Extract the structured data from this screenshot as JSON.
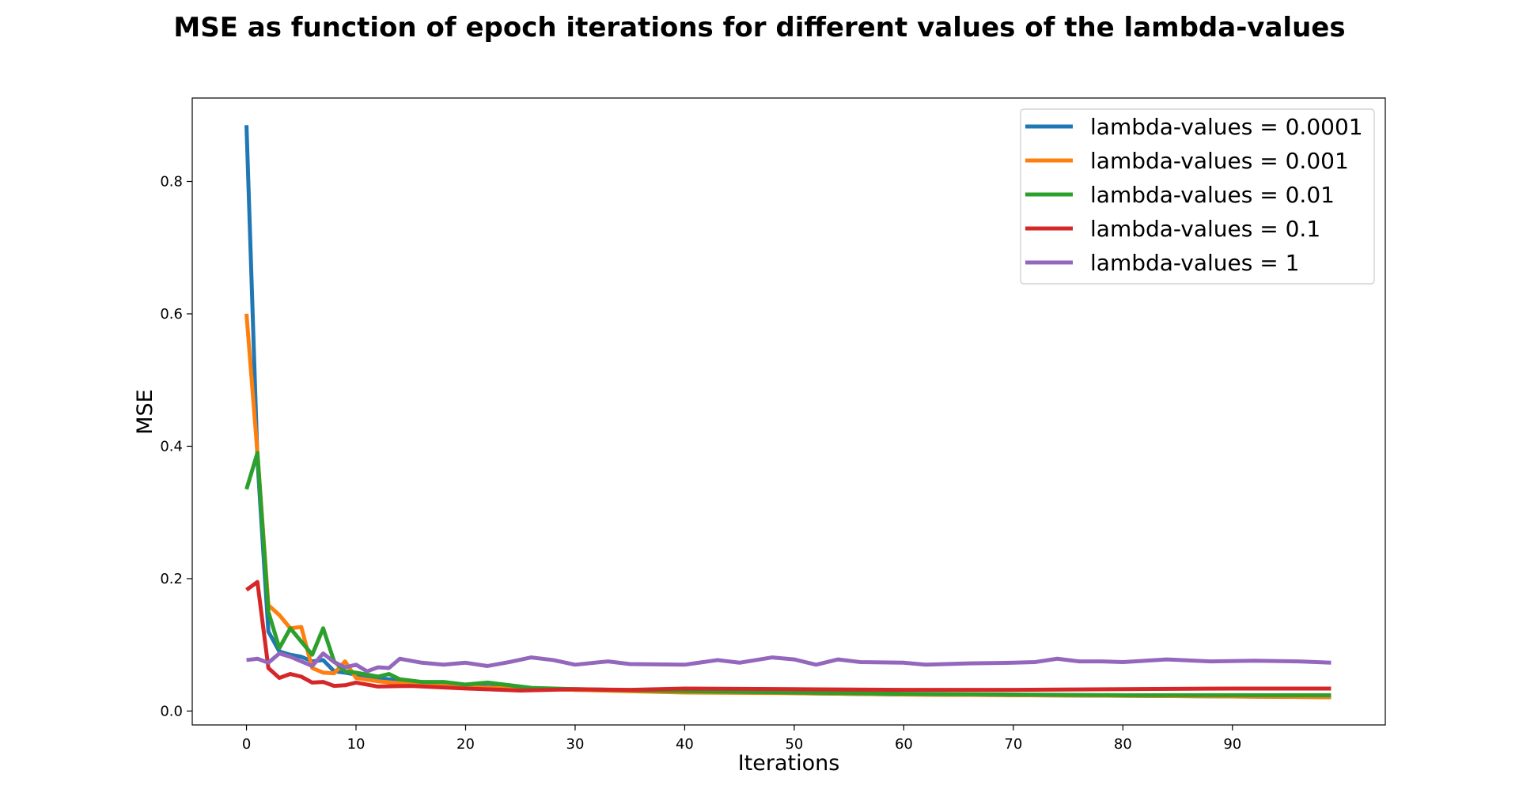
{
  "chart_data": {
    "type": "line",
    "title": "MSE as function of epoch iterations for different values of the lambda-values",
    "xlabel": "Iterations",
    "ylabel": "MSE",
    "xlim": [
      -4.95,
      103.95
    ],
    "ylim": [
      -0.021,
      0.926
    ],
    "xticks": [
      0,
      10,
      20,
      30,
      40,
      50,
      60,
      70,
      80,
      90
    ],
    "yticks": [
      0.0,
      0.2,
      0.4,
      0.6,
      0.8
    ],
    "grid": false,
    "legend_position": "top-right",
    "series": [
      {
        "name": "lambda-values = 0.0001",
        "color": "#1f77b4",
        "keypoints": [
          [
            0,
            0.885
          ],
          [
            1,
            0.38
          ],
          [
            2,
            0.12
          ],
          [
            3,
            0.09
          ],
          [
            4,
            0.085
          ],
          [
            5,
            0.082
          ],
          [
            6,
            0.075
          ],
          [
            7,
            0.077
          ],
          [
            8,
            0.06
          ],
          [
            9,
            0.058
          ],
          [
            10,
            0.055
          ],
          [
            12,
            0.05
          ],
          [
            14,
            0.046
          ],
          [
            20,
            0.038
          ],
          [
            30,
            0.032
          ],
          [
            40,
            0.029
          ],
          [
            50,
            0.027
          ],
          [
            60,
            0.025
          ],
          [
            70,
            0.024
          ],
          [
            80,
            0.023
          ],
          [
            90,
            0.022
          ],
          [
            99,
            0.021
          ]
        ]
      },
      {
        "name": "lambda-values = 0.001",
        "color": "#ff7f0e",
        "keypoints": [
          [
            0,
            0.6
          ],
          [
            1,
            0.39
          ],
          [
            2,
            0.16
          ],
          [
            3,
            0.145
          ],
          [
            4,
            0.125
          ],
          [
            5,
            0.127
          ],
          [
            6,
            0.065
          ],
          [
            7,
            0.058
          ],
          [
            8,
            0.057
          ],
          [
            9,
            0.075
          ],
          [
            10,
            0.05
          ],
          [
            12,
            0.045
          ],
          [
            14,
            0.042
          ],
          [
            20,
            0.036
          ],
          [
            30,
            0.032
          ],
          [
            40,
            0.028
          ],
          [
            50,
            0.027
          ],
          [
            60,
            0.025
          ],
          [
            70,
            0.024
          ],
          [
            80,
            0.023
          ],
          [
            90,
            0.022
          ],
          [
            99,
            0.021
          ]
        ]
      },
      {
        "name": "lambda-values = 0.01",
        "color": "#2ca02c",
        "keypoints": [
          [
            0,
            0.335
          ],
          [
            1,
            0.39
          ],
          [
            2,
            0.15
          ],
          [
            3,
            0.095
          ],
          [
            4,
            0.125
          ],
          [
            5,
            0.105
          ],
          [
            6,
            0.085
          ],
          [
            7,
            0.125
          ],
          [
            8,
            0.075
          ],
          [
            9,
            0.06
          ],
          [
            10,
            0.058
          ],
          [
            12,
            0.052
          ],
          [
            13,
            0.056
          ],
          [
            14,
            0.048
          ],
          [
            16,
            0.044
          ],
          [
            18,
            0.044
          ],
          [
            20,
            0.04
          ],
          [
            22,
            0.043
          ],
          [
            26,
            0.035
          ],
          [
            30,
            0.033
          ],
          [
            40,
            0.03
          ],
          [
            50,
            0.028
          ],
          [
            60,
            0.026
          ],
          [
            70,
            0.025
          ],
          [
            80,
            0.024
          ],
          [
            90,
            0.024
          ],
          [
            99,
            0.024
          ]
        ]
      },
      {
        "name": "lambda-values = 0.1",
        "color": "#d62728",
        "keypoints": [
          [
            0,
            0.183
          ],
          [
            1,
            0.195
          ],
          [
            2,
            0.065
          ],
          [
            3,
            0.05
          ],
          [
            4,
            0.056
          ],
          [
            5,
            0.052
          ],
          [
            6,
            0.043
          ],
          [
            7,
            0.044
          ],
          [
            8,
            0.038
          ],
          [
            9,
            0.039
          ],
          [
            10,
            0.043
          ],
          [
            12,
            0.037
          ],
          [
            15,
            0.038
          ],
          [
            20,
            0.034
          ],
          [
            25,
            0.031
          ],
          [
            30,
            0.033
          ],
          [
            35,
            0.032
          ],
          [
            40,
            0.034
          ],
          [
            50,
            0.033
          ],
          [
            60,
            0.032
          ],
          [
            70,
            0.032
          ],
          [
            80,
            0.033
          ],
          [
            90,
            0.034
          ],
          [
            99,
            0.034
          ]
        ]
      },
      {
        "name": "lambda-values = 1",
        "color": "#9467bd",
        "keypoints": [
          [
            0,
            0.077
          ],
          [
            1,
            0.079
          ],
          [
            2,
            0.073
          ],
          [
            3,
            0.087
          ],
          [
            4,
            0.082
          ],
          [
            5,
            0.075
          ],
          [
            6,
            0.068
          ],
          [
            7,
            0.087
          ],
          [
            8,
            0.074
          ],
          [
            9,
            0.066
          ],
          [
            10,
            0.07
          ],
          [
            11,
            0.06
          ],
          [
            12,
            0.066
          ],
          [
            13,
            0.065
          ],
          [
            14,
            0.079
          ],
          [
            16,
            0.073
          ],
          [
            18,
            0.07
          ],
          [
            20,
            0.073
          ],
          [
            22,
            0.068
          ],
          [
            24,
            0.074
          ],
          [
            26,
            0.081
          ],
          [
            28,
            0.077
          ],
          [
            30,
            0.07
          ],
          [
            33,
            0.075
          ],
          [
            35,
            0.071
          ],
          [
            40,
            0.07
          ],
          [
            43,
            0.077
          ],
          [
            45,
            0.073
          ],
          [
            48,
            0.081
          ],
          [
            50,
            0.078
          ],
          [
            52,
            0.07
          ],
          [
            54,
            0.078
          ],
          [
            56,
            0.074
          ],
          [
            60,
            0.073
          ],
          [
            62,
            0.07
          ],
          [
            66,
            0.072
          ],
          [
            70,
            0.073
          ],
          [
            72,
            0.074
          ],
          [
            74,
            0.079
          ],
          [
            76,
            0.075
          ],
          [
            78,
            0.075
          ],
          [
            80,
            0.074
          ],
          [
            84,
            0.078
          ],
          [
            88,
            0.075
          ],
          [
            92,
            0.076
          ],
          [
            96,
            0.075
          ],
          [
            99,
            0.073
          ]
        ]
      }
    ]
  }
}
